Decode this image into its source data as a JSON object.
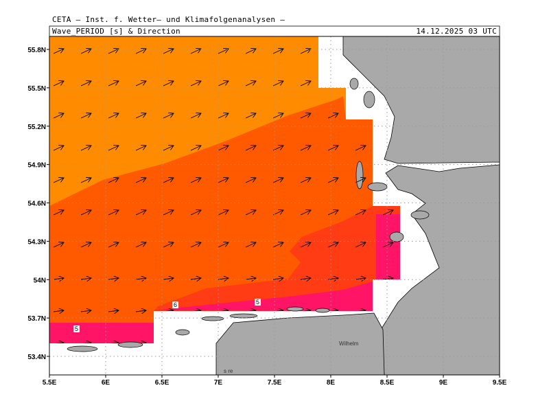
{
  "header": {
    "institute": "CETA — Inst. f. Wetter— und Klimafolgenanalysen —",
    "title": "Wave_PERIOD [s] & Direction",
    "timestamp": "14.12.2025 03 UTC"
  },
  "lon_ticks": [
    "5.5E",
    "6E",
    "6.5E",
    "7E",
    "7.5E",
    "8E",
    "8.5E",
    "9E",
    "9.5E"
  ],
  "lat_ticks": [
    "55.8N",
    "55.5N",
    "55.2N",
    "54.9N",
    "54.6N",
    "54.3N",
    "54N",
    "53.7N",
    "53.4N"
  ],
  "contour_labels": [
    "6",
    "5",
    "5"
  ],
  "place_labels": [
    "Wilhelm",
    "s re"
  ]
}
